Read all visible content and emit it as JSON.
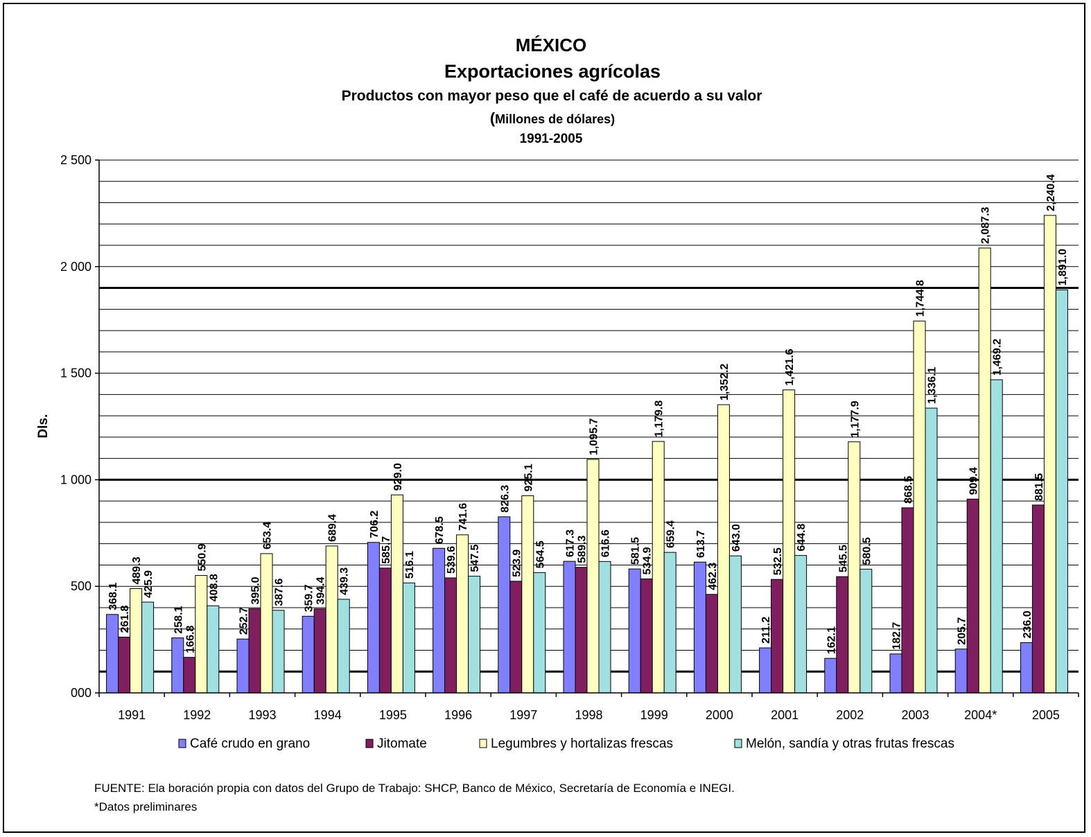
{
  "chart_data": {
    "type": "bar",
    "title": "MÉXICO",
    "subtitle": "Exportaciones agrícolas",
    "subtitle2": "Productos con mayor peso que el café de acuerdo a su valor",
    "unit_note_paren": "(",
    "unit_note": "Millones de dólares)",
    "period": "1991-2005",
    "ylabel": "Dls.",
    "xlabel": "",
    "ylim": [
      0,
      2500
    ],
    "y_ticks": [
      0,
      500,
      1000,
      1500,
      2000,
      2500
    ],
    "y_tick_labels": [
      "000",
      "500",
      "1 000",
      "1 500",
      "2 000",
      "2 500"
    ],
    "bold_gridlines": [
      100,
      1000,
      1900
    ],
    "grid": true,
    "legend_position": "bottom",
    "categories": [
      "1991",
      "1992",
      "1993",
      "1994",
      "1995",
      "1996",
      "1997",
      "1998",
      "1999",
      "2000",
      "2001",
      "2002",
      "2003",
      "2004*",
      "2005"
    ],
    "series": [
      {
        "name": "Café crudo en grano",
        "color": "#8080ff",
        "values": [
          368.1,
          258.1,
          252.7,
          359.7,
          706.2,
          678.5,
          826.3,
          617.3,
          581.5,
          613.7,
          211.2,
          162.1,
          182.7,
          205.7,
          236.0
        ],
        "labels": [
          "368.1",
          "258.1",
          "252.7",
          "359.7",
          "706.2",
          "678.5",
          "826.3",
          "617.3",
          "581.5",
          "613.7",
          "211.2",
          "162.1",
          "182.7",
          "205.7",
          "236.0"
        ]
      },
      {
        "name": "Jitomate",
        "color": "#7f1f5f",
        "values": [
          261.8,
          166.8,
          395.0,
          394.4,
          585.7,
          539.6,
          523.9,
          589.3,
          534.9,
          462.3,
          532.5,
          545.5,
          868.5,
          909.4,
          881.5
        ],
        "labels": [
          "261.8",
          "166.8",
          "395.0",
          "394.4",
          "585.7",
          "539.6",
          "523.9",
          "589.3",
          "534.9",
          "462.3",
          "532.5",
          "545.5",
          "868.5",
          "909.4",
          "881.5"
        ]
      },
      {
        "name": "Legumbres y hortalizas frescas",
        "color": "#ffffc0",
        "values": [
          489.3,
          550.9,
          653.4,
          689.4,
          929.0,
          741.6,
          925.1,
          1095.7,
          1179.8,
          1352.2,
          1421.6,
          1177.9,
          1744.8,
          2087.3,
          2240.4
        ],
        "labels": [
          "489.3",
          "550.9",
          "653.4",
          "689.4",
          "929.0",
          "741.6",
          "925.1",
          "1,095.7",
          "1,179.8",
          "1,352.2",
          "1,421.6",
          "1,177.9",
          "1,744.8",
          "2,087.3",
          "2,240.4"
        ]
      },
      {
        "name": "Melón, sandía y otras frutas frescas",
        "color": "#a0e0e0",
        "values": [
          425.9,
          408.8,
          387.6,
          439.3,
          516.1,
          547.5,
          564.5,
          616.6,
          659.4,
          643.0,
          644.8,
          580.5,
          1336.1,
          1469.2,
          1891.0
        ],
        "labels": [
          "425.9",
          "408.8",
          "387.6",
          "439.3",
          "516.1",
          "547.5",
          "564.5",
          "616.6",
          "659.4",
          "643.0",
          "644.8",
          "580.5",
          "1,336.1",
          "1,469.2",
          "1,891.0"
        ]
      }
    ]
  },
  "footer": {
    "source": "FUENTE: Ela boración propia con datos del Grupo de Trabajo: SHCP, Banco de México, Secretaría de Economía e INEGI.",
    "note": "*Datos preliminares"
  }
}
